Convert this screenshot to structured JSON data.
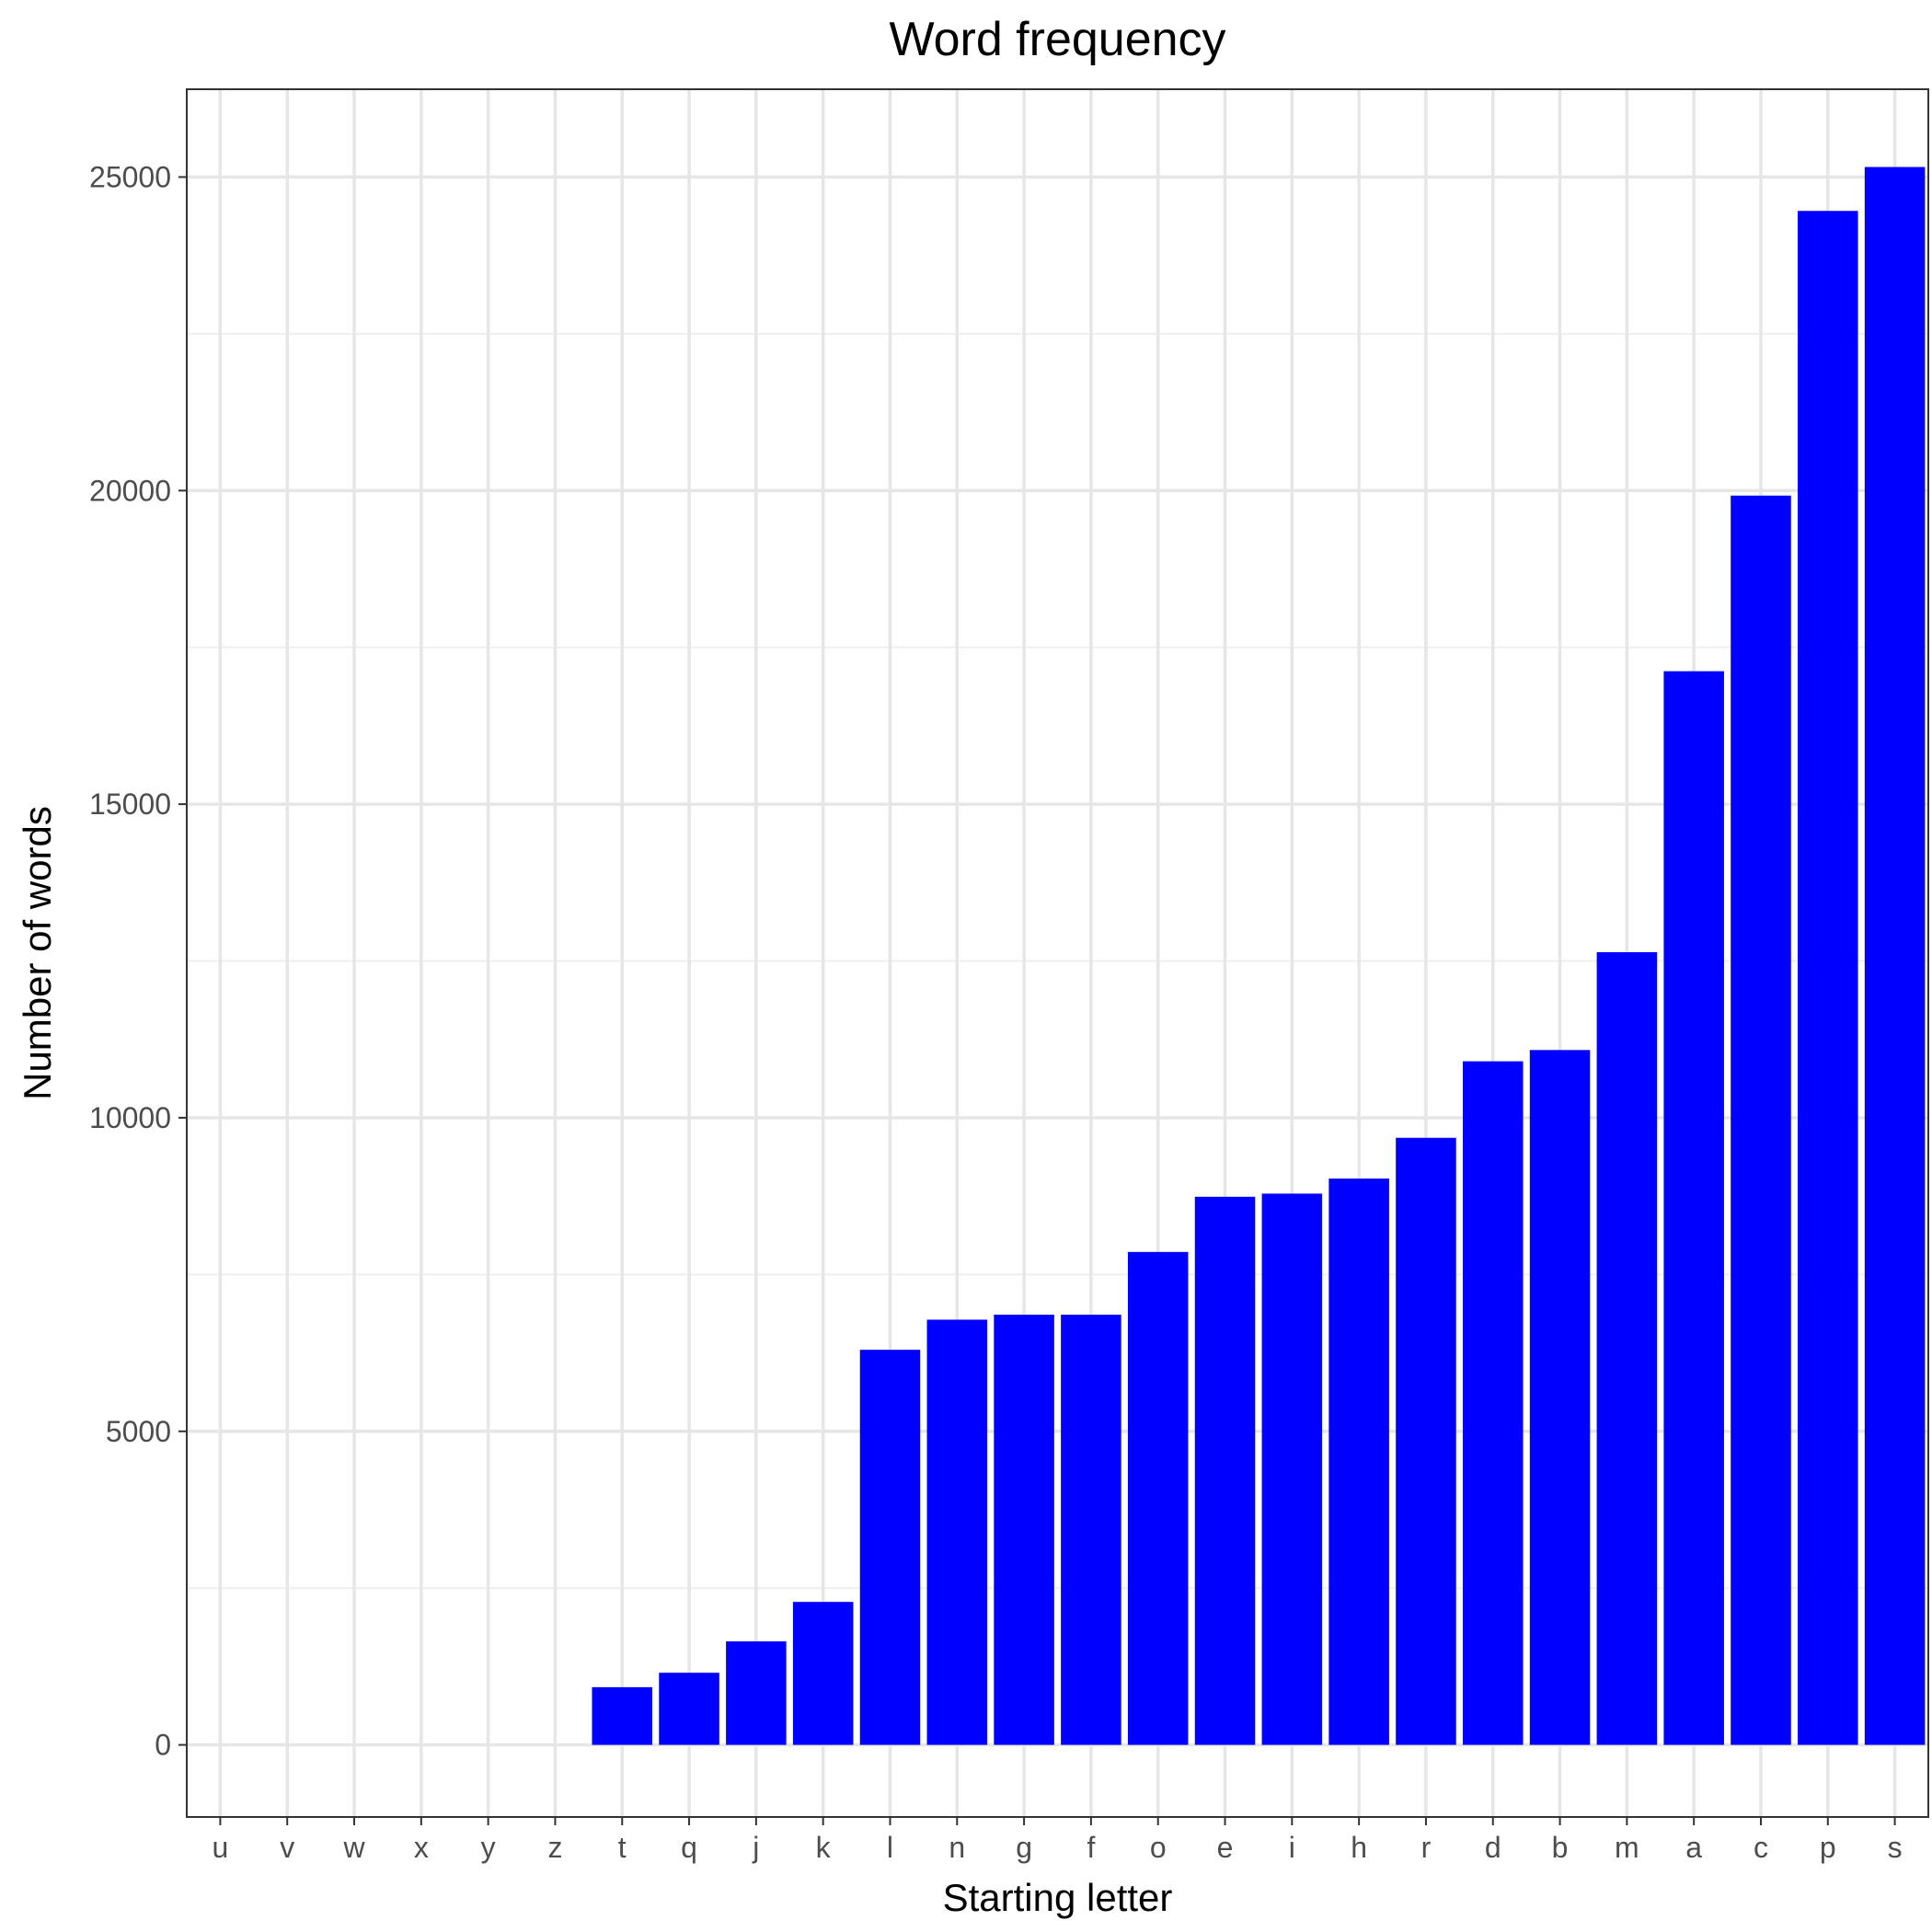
{
  "chart_data": {
    "type": "bar",
    "title": "Word frequency",
    "xlabel": "Starting letter",
    "ylabel": "Number of words",
    "categories": [
      "u",
      "v",
      "w",
      "x",
      "y",
      "z",
      "t",
      "q",
      "j",
      "k",
      "l",
      "n",
      "g",
      "f",
      "o",
      "e",
      "i",
      "h",
      "r",
      "d",
      "b",
      "m",
      "a",
      "c",
      "p",
      "s"
    ],
    "values": [
      0,
      0,
      0,
      0,
      0,
      0,
      920,
      1150,
      1650,
      2280,
      6300,
      6780,
      6860,
      6860,
      7860,
      8740,
      8790,
      9030,
      9680,
      10900,
      11080,
      12640,
      17120,
      19920,
      24460,
      25160
    ],
    "ylim": [
      -1150,
      26400
    ],
    "yticks": [
      0,
      5000,
      10000,
      15000,
      20000,
      25000
    ],
    "ytick_labels": [
      "0",
      "5000",
      "10000",
      "15000",
      "20000",
      "25000"
    ],
    "bar_color": "#0000ff",
    "grid": true,
    "legend": "none"
  }
}
